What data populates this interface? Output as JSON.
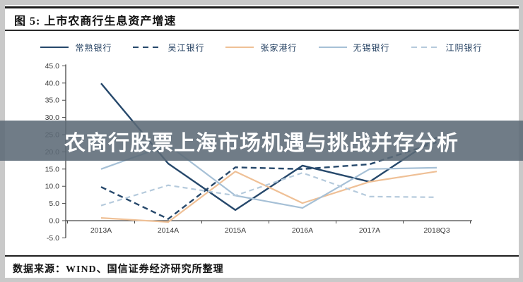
{
  "figure": {
    "title": "图 5: 上市农商行生息资产增速"
  },
  "overlay": {
    "headline": "农商行股票上海市场机遇与挑战并存分析",
    "background_color": "#5c6a76",
    "text_color": "#ffffff"
  },
  "source": {
    "label": "数据来源：WIND、国信证券经济研究所整理"
  },
  "chart_data": {
    "type": "line",
    "title": "上市农商行生息资产增速",
    "xlabel": "",
    "ylabel": "",
    "ylim": [
      -5,
      45
    ],
    "ytick_step": 5,
    "grid": false,
    "legend_position": "top",
    "categories": [
      "2013A",
      "2014A",
      "2015A",
      "2016A",
      "2017A",
      "2018Q3"
    ],
    "series": [
      {
        "name": "常熟银行",
        "color": "#26486b",
        "style": "solid",
        "width": 2.4,
        "values": [
          39.9,
          16.6,
          3.1,
          16.0,
          11.3,
          24.2
        ]
      },
      {
        "name": "吴江银行",
        "color": "#26486b",
        "style": "dashed",
        "width": 2.4,
        "dash": "8,5",
        "values": [
          9.8,
          0.5,
          15.5,
          15.0,
          16.4,
          22.8
        ]
      },
      {
        "name": "张家港行",
        "color": "#efc096",
        "style": "solid",
        "width": 2.2,
        "values": [
          0.8,
          -0.4,
          14.3,
          5.1,
          11.3,
          14.3
        ]
      },
      {
        "name": "无锡银行",
        "color": "#a6c0d6",
        "style": "solid",
        "width": 2.2,
        "values": [
          15.0,
          22.0,
          7.3,
          3.7,
          15.0,
          15.4
        ]
      },
      {
        "name": "江阴银行",
        "color": "#b5cadc",
        "style": "dashed",
        "width": 2.2,
        "dash": "7,5",
        "values": [
          4.4,
          10.3,
          7.3,
          13.9,
          7.0,
          6.8
        ]
      }
    ],
    "axis_color": "#474747",
    "tick_label_color": "#3c3c3c"
  }
}
